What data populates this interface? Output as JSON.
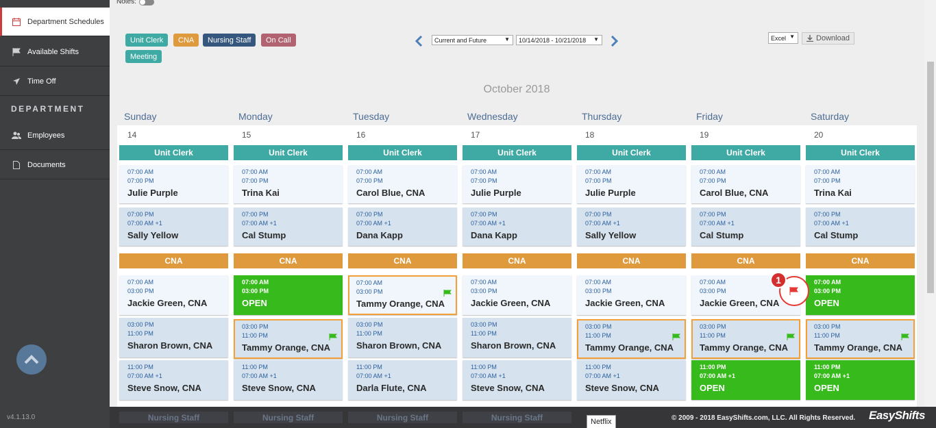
{
  "sidebar": {
    "items": [
      {
        "label": "Department Schedules",
        "icon": "calendar-icon"
      },
      {
        "label": "Available Shifts",
        "icon": "flag-icon"
      },
      {
        "label": "Time Off",
        "icon": "plane-icon"
      },
      {
        "label": "Employees",
        "icon": "users-icon"
      },
      {
        "label": "Documents",
        "icon": "document-icon"
      }
    ],
    "section_label": "DEPARTMENT",
    "version": "v4.1.13.0"
  },
  "top": {
    "notes_label": "Notes:",
    "legend": [
      "Unit Clerk",
      "CNA",
      "Nursing Staff",
      "On Call",
      "Meeting"
    ],
    "range_select": "Current and Future",
    "date_select": "10/14/2018 - 10/21/2018",
    "export_select": "Excel",
    "download_label": "Download"
  },
  "colors": {
    "unit_clerk": "#3fa9a3",
    "cna": "#e09a3e",
    "nursing_staff": "#35577d",
    "on_call": "#b26371",
    "open": "#37ba1b",
    "highlight": "#f2a03a",
    "nav_accent": "#4d7fb8"
  },
  "calendar": {
    "month": "October 2018",
    "days": [
      {
        "name": "Sunday",
        "num": "14"
      },
      {
        "name": "Monday",
        "num": "15"
      },
      {
        "name": "Tuesday",
        "num": "16"
      },
      {
        "name": "Wednesday",
        "num": "17"
      },
      {
        "name": "Thursday",
        "num": "18"
      },
      {
        "name": "Friday",
        "num": "19"
      },
      {
        "name": "Saturday",
        "num": "20"
      }
    ],
    "unit_clerk_label": "Unit Clerk",
    "cna_label": "CNA",
    "nursing_label": "Nursing Staff",
    "unit_clerk": [
      [
        {
          "start": "07:00 AM",
          "end": "07:00 PM",
          "name": "Julie Purple"
        },
        {
          "start": "07:00 PM",
          "end": "07:00 AM +1",
          "name": "Sally Yellow"
        }
      ],
      [
        {
          "start": "07:00 AM",
          "end": "07:00 PM",
          "name": "Trina Kai"
        },
        {
          "start": "07:00 PM",
          "end": "07:00 AM +1",
          "name": "Cal Stump"
        }
      ],
      [
        {
          "start": "07:00 AM",
          "end": "07:00 PM",
          "name": "Carol Blue, CNA"
        },
        {
          "start": "07:00 PM",
          "end": "07:00 AM +1",
          "name": "Dana Kapp"
        }
      ],
      [
        {
          "start": "07:00 AM",
          "end": "07:00 PM",
          "name": "Julie Purple"
        },
        {
          "start": "07:00 PM",
          "end": "07:00 AM +1",
          "name": "Dana Kapp"
        }
      ],
      [
        {
          "start": "07:00 AM",
          "end": "07:00 PM",
          "name": "Julie Purple"
        },
        {
          "start": "07:00 PM",
          "end": "07:00 AM +1",
          "name": "Sally Yellow"
        }
      ],
      [
        {
          "start": "07:00 AM",
          "end": "07:00 PM",
          "name": "Carol Blue, CNA"
        },
        {
          "start": "07:00 PM",
          "end": "07:00 AM +1",
          "name": "Cal Stump"
        }
      ],
      [
        {
          "start": "07:00 AM",
          "end": "07:00 PM",
          "name": "Trina Kai"
        },
        {
          "start": "07:00 PM",
          "end": "07:00 AM +1",
          "name": "Cal Stump"
        }
      ]
    ],
    "cna": [
      [
        {
          "start": "07:00 AM",
          "end": "03:00 PM",
          "name": "Jackie Green, CNA"
        },
        {
          "start": "03:00 PM",
          "end": "11:00 PM",
          "name": "Sharon Brown, CNA"
        },
        {
          "start": "11:00 PM",
          "end": "07:00 AM +1",
          "name": "Steve Snow, CNA"
        }
      ],
      [
        {
          "start": "07:00 AM",
          "end": "03:00 PM",
          "name": "OPEN"
        },
        {
          "start": "03:00 PM",
          "end": "11:00 PM",
          "name": "Tammy Orange, CNA"
        },
        {
          "start": "11:00 PM",
          "end": "07:00 AM +1",
          "name": "Steve Snow, CNA"
        }
      ],
      [
        {
          "start": "07:00 AM",
          "end": "03:00 PM",
          "name": "Tammy Orange, CNA"
        },
        {
          "start": "03:00 PM",
          "end": "11:00 PM",
          "name": "Sharon Brown, CNA"
        },
        {
          "start": "11:00 PM",
          "end": "07:00 AM +1",
          "name": "Darla Flute, CNA"
        }
      ],
      [
        {
          "start": "07:00 AM",
          "end": "03:00 PM",
          "name": "Jackie Green, CNA"
        },
        {
          "start": "03:00 PM",
          "end": "11:00 PM",
          "name": "Sharon Brown, CNA"
        },
        {
          "start": "11:00 PM",
          "end": "07:00 AM +1",
          "name": "Steve Snow, CNA"
        }
      ],
      [
        {
          "start": "07:00 AM",
          "end": "03:00 PM",
          "name": "Jackie Green, CNA"
        },
        {
          "start": "03:00 PM",
          "end": "11:00 PM",
          "name": "Tammy Orange, CNA"
        },
        {
          "start": "11:00 PM",
          "end": "07:00 AM +1",
          "name": "Steve Snow, CNA"
        }
      ],
      [
        {
          "start": "07:00 AM",
          "end": "03:00 PM",
          "name": "Jackie Green, CNA"
        },
        {
          "start": "03:00 PM",
          "end": "11:00 PM",
          "name": "Tammy Orange, CNA"
        },
        {
          "start": "11:00 PM",
          "end": "07:00 AM +1",
          "name": "OPEN"
        }
      ],
      [
        {
          "start": "07:00 AM",
          "end": "03:00 PM",
          "name": "OPEN"
        },
        {
          "start": "03:00 PM",
          "end": "11:00 PM",
          "name": "Tammy Orange, CNA"
        },
        {
          "start": "11:00 PM",
          "end": "07:00 AM +1",
          "name": "OPEN"
        }
      ]
    ],
    "badge_number": "1"
  },
  "footer": {
    "copyright": "© 2009 - 2018 EasyShifts.com, LLC. All Rights Reserved.",
    "brand": "EasyShifts",
    "tooltip": "Netflix"
  }
}
